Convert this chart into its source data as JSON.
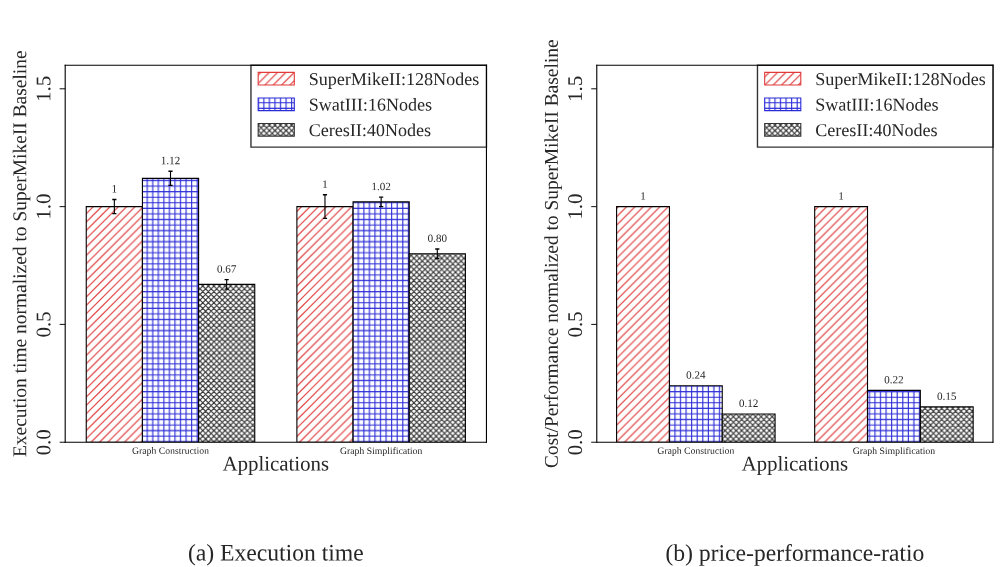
{
  "chart_data": [
    {
      "type": "bar",
      "title": "(a) Execution time",
      "xlabel": "Applications",
      "ylabel": "Execution time normalized to SuperMikeII Baseline",
      "categories": [
        "Graph Construction",
        "Graph Simplification"
      ],
      "ylim": [
        0,
        1.6
      ],
      "yticks": [
        {
          "value": 0,
          "label": "0.0"
        },
        {
          "value": 0.5,
          "label": "0.5"
        },
        {
          "value": 1,
          "label": "1.0"
        },
        {
          "value": 1.5,
          "label": "1.5"
        }
      ],
      "legend": "top right",
      "grid": false,
      "series": [
        {
          "name": "SuperMikeII:128Nodes",
          "color": "#e03a3a",
          "values": [
            1,
            1
          ],
          "errors": [
            0.03,
            0.05
          ],
          "value_labels": [
            "1",
            "1"
          ]
        },
        {
          "name": "SwatIII:16Nodes",
          "color": "#2a2ad8",
          "values": [
            1.12,
            1.02
          ],
          "errors": [
            0.03,
            0.02
          ],
          "value_labels": [
            "1.12",
            "1.02"
          ]
        },
        {
          "name": "CeresII:40Nodes",
          "color": "#333333",
          "values": [
            0.67,
            0.8
          ],
          "errors": [
            0.02,
            0.02
          ],
          "value_labels": [
            "0.67",
            "0.80"
          ]
        }
      ]
    },
    {
      "type": "bar",
      "title": "(b) price-performance-ratio",
      "xlabel": "Applications",
      "ylabel": "Cost/Performance normalized to SuperMikeII Baseline",
      "categories": [
        "Graph Construction",
        "Graph Simplification"
      ],
      "ylim": [
        0,
        1.6
      ],
      "yticks": [
        {
          "value": 0,
          "label": "0.0"
        },
        {
          "value": 0.5,
          "label": "0.5"
        },
        {
          "value": 1,
          "label": "1.0"
        },
        {
          "value": 1.5,
          "label": "1.5"
        }
      ],
      "legend": "top right",
      "grid": false,
      "series": [
        {
          "name": "SuperMikeII:128Nodes",
          "color": "#e03a3a",
          "values": [
            1,
            1
          ],
          "value_labels": [
            "1",
            "1"
          ]
        },
        {
          "name": "SwatIII:16Nodes",
          "color": "#2a2ad8",
          "values": [
            0.24,
            0.22
          ],
          "value_labels": [
            "0.24",
            "0.22"
          ]
        },
        {
          "name": "CeresII:40Nodes",
          "color": "#333333",
          "values": [
            0.12,
            0.15
          ],
          "value_labels": [
            "0.12",
            "0.15"
          ]
        }
      ]
    }
  ]
}
